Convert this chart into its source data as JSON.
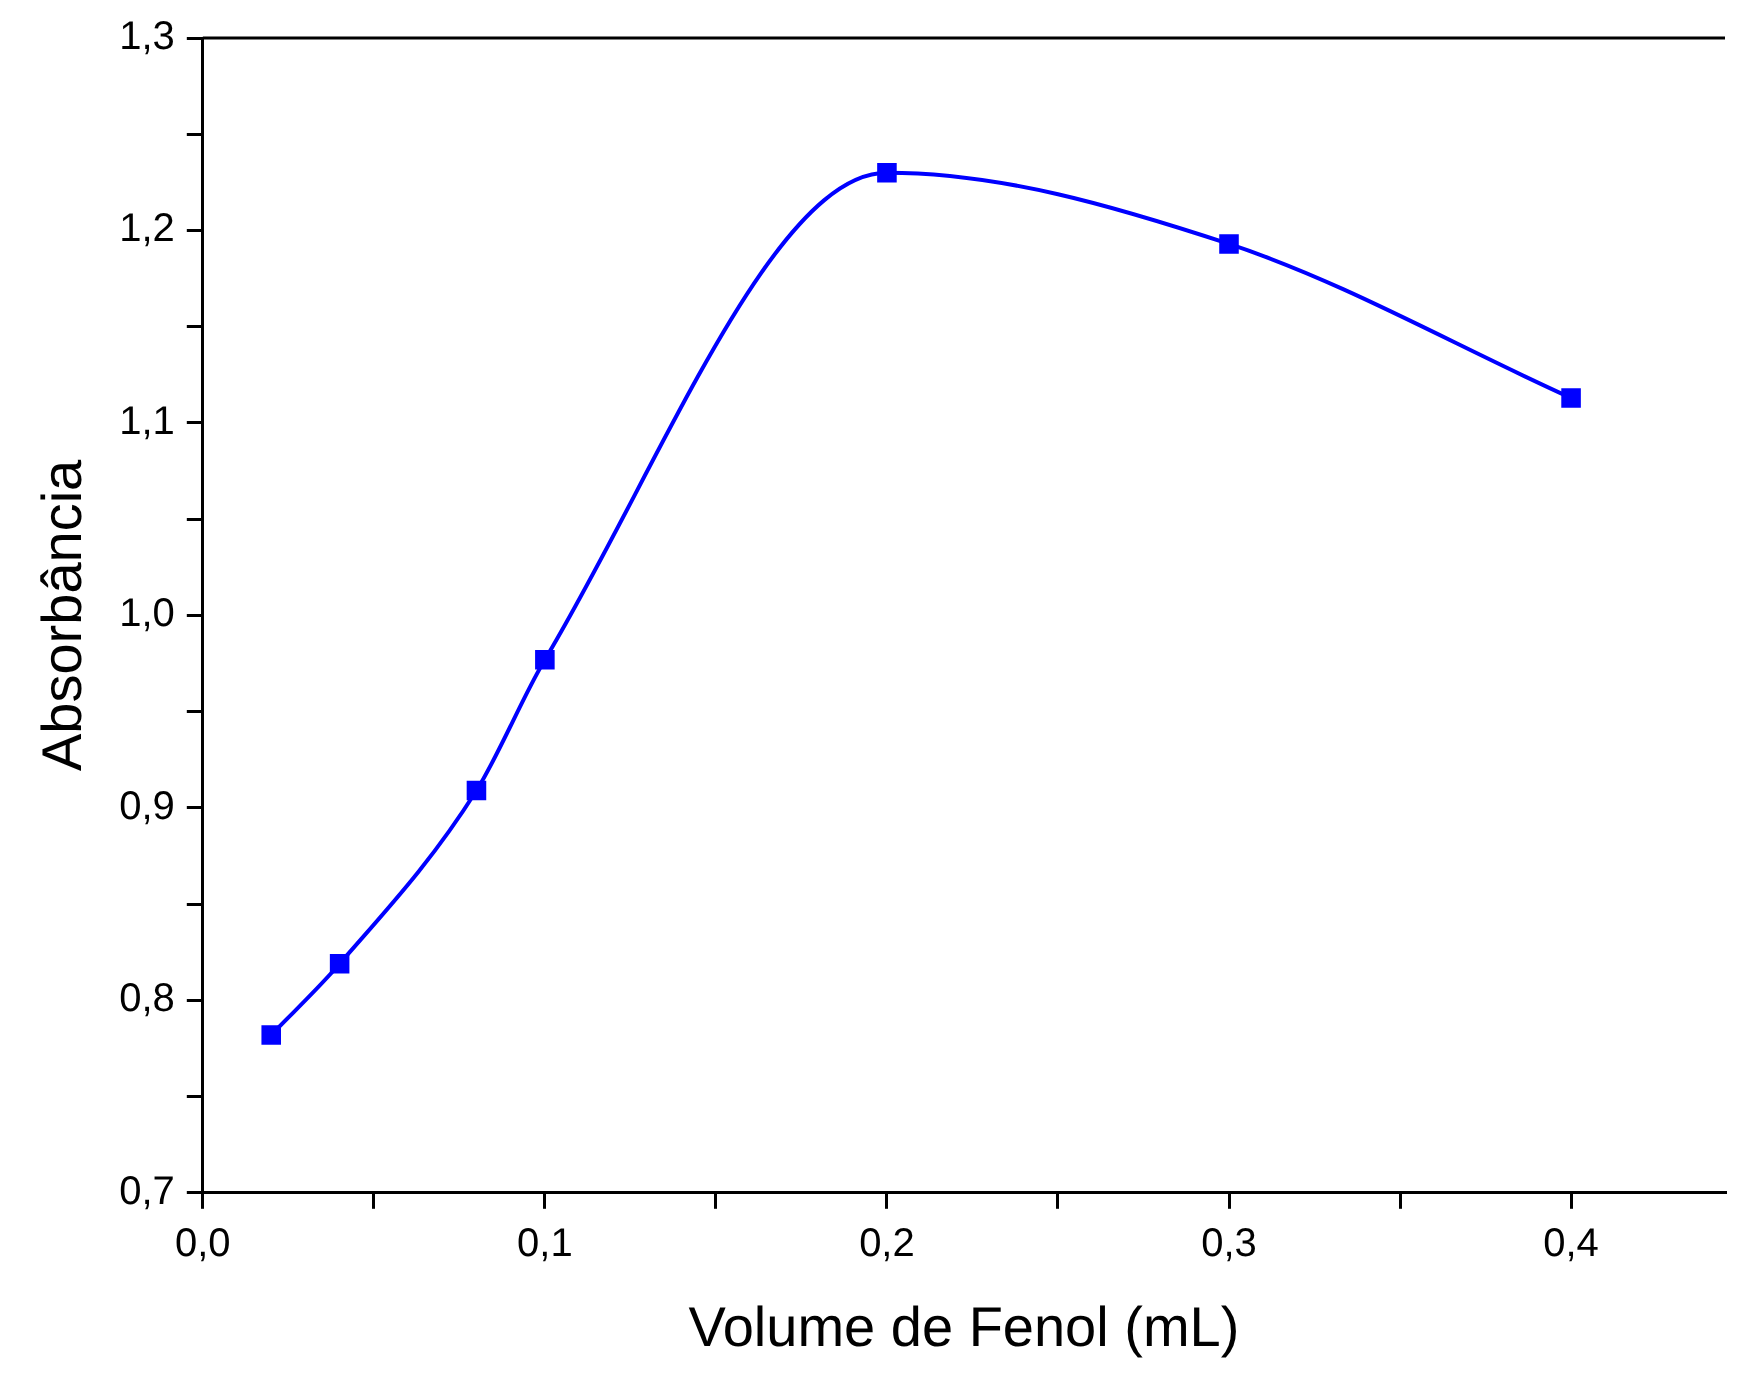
{
  "chart_data": {
    "type": "line",
    "xlabel": "Volume de Fenol (mL)",
    "ylabel": "Absorbância",
    "x": [
      0.02,
      0.04,
      0.08,
      0.1,
      0.2,
      0.3,
      0.4
    ],
    "series": [
      {
        "color": "#0000ff",
        "values": [
          0.782,
          0.819,
          0.909,
          0.977,
          1.23,
          1.193,
          1.113
        ]
      }
    ],
    "xlim": [
      0,
      0.445
    ],
    "xticks": [
      {
        "value": 0,
        "label": "0,0"
      },
      {
        "value": 0.05,
        "label": null
      },
      {
        "value": 0.1,
        "label": "0,1"
      },
      {
        "value": 0.15,
        "label": null
      },
      {
        "value": 0.2,
        "label": "0,2"
      },
      {
        "value": 0.25,
        "label": null
      },
      {
        "value": 0.3,
        "label": "0,3"
      },
      {
        "value": 0.35,
        "label": null
      },
      {
        "value": 0.4,
        "label": "0,4"
      }
    ],
    "ylim": [
      0.7,
      1.3
    ],
    "yticks": [
      {
        "value": 0.7,
        "label": "0,7"
      },
      {
        "value": 0.75,
        "label": null
      },
      {
        "value": 0.8,
        "label": "0,8"
      },
      {
        "value": 0.85,
        "label": null
      },
      {
        "value": 0.9,
        "label": "0,9"
      },
      {
        "value": 0.95,
        "label": null
      },
      {
        "value": 1.0,
        "label": "1,0"
      },
      {
        "value": 1.05,
        "label": null
      },
      {
        "value": 1.1,
        "label": "1,1"
      },
      {
        "value": 1.15,
        "label": null
      },
      {
        "value": 1.2,
        "label": "1,2"
      },
      {
        "value": 1.25,
        "label": null
      },
      {
        "value": 1.3,
        "label": "1,3"
      }
    ],
    "marker": "square",
    "line_style": "solid",
    "grid": false,
    "legend": false
  }
}
